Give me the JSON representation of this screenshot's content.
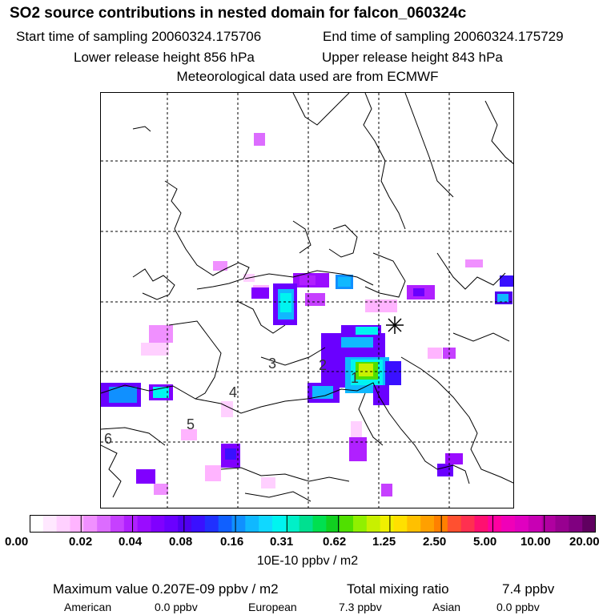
{
  "header": {
    "title": "SO2 source contributions in nested domain for falcon_060324c",
    "start_sampling": "Start time of sampling 20060324.175706",
    "end_sampling": "End time of sampling 20060324.175729",
    "lower_release": "Lower release height  856 hPa",
    "upper_release": "Upper release height  843 hPa",
    "met_data": "Meteorological data used are from ECMWF"
  },
  "map": {
    "region_labels": [
      "1",
      "2",
      "3",
      "4",
      "5",
      "6"
    ],
    "release_marker": "star-marker"
  },
  "colorbar": {
    "tick_labels": [
      "0.00",
      "0.02",
      "0.04",
      "0.08",
      "0.16",
      "0.31",
      "0.62",
      "1.25",
      "2.50",
      "5.00",
      "10.00",
      "20.00"
    ],
    "colors": [
      "#ffffff",
      "#ffe8ff",
      "#ffd0ff",
      "#ffb4ff",
      "#f090ff",
      "#dc6cff",
      "#c640ff",
      "#b020ff",
      "#9a0cff",
      "#8000ff",
      "#6a00ff",
      "#5000f0",
      "#3a10ff",
      "#2030ff",
      "#1060ff",
      "#1090ff",
      "#10b8ff",
      "#10d8ff",
      "#00f4f0",
      "#00f0c8",
      "#00e090",
      "#00e050",
      "#10d020",
      "#50e000",
      "#90f000",
      "#c8f000",
      "#f0f000",
      "#ffe000",
      "#ffc000",
      "#ffa000",
      "#ff8000",
      "#ff5030",
      "#ff3050",
      "#ff1070",
      "#ff00a0",
      "#f000b8",
      "#e000c0",
      "#c800b4",
      "#b000a0",
      "#980090",
      "#800080",
      "#600060"
    ],
    "units": "10E-10 ppbv / m2"
  },
  "summary": {
    "max_value": "Maximum value  0.207E-09 ppbv / m2",
    "total_label": "Total mixing ratio",
    "total_value": "7.4 ppbv",
    "american_label": "American",
    "american_value": "0.0 ppbv",
    "european_label": "European",
    "european_value": "7.3 ppbv",
    "asian_label": "Asian",
    "asian_value": "0.0 ppbv"
  }
}
